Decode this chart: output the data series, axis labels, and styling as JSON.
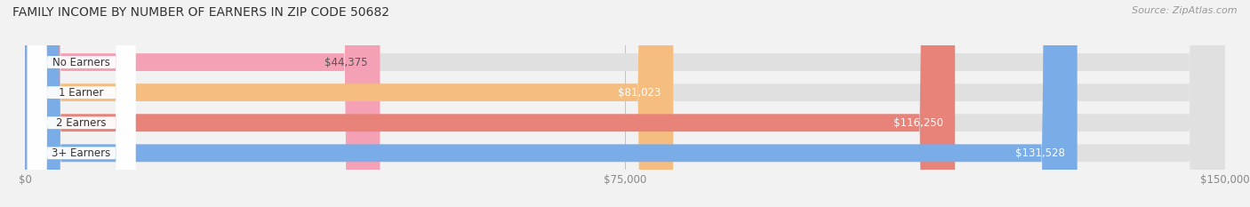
{
  "title": "FAMILY INCOME BY NUMBER OF EARNERS IN ZIP CODE 50682",
  "source": "Source: ZipAtlas.com",
  "categories": [
    "No Earners",
    "1 Earner",
    "2 Earners",
    "3+ Earners"
  ],
  "values": [
    44375,
    81023,
    116250,
    131528
  ],
  "bar_colors": [
    "#f4a0b5",
    "#f5be80",
    "#e8837a",
    "#7aace8"
  ],
  "bar_labels": [
    "$44,375",
    "$81,023",
    "$116,250",
    "$131,528"
  ],
  "x_ticks": [
    0,
    75000,
    150000
  ],
  "x_tick_labels": [
    "$0",
    "$75,000",
    "$150,000"
  ],
  "xlim": [
    0,
    150000
  ],
  "bg_color": "#f2f2f2",
  "track_color": "#e0e0e0",
  "title_fontsize": 10,
  "source_fontsize": 8,
  "label_fontsize": 8.5,
  "tick_fontsize": 8.5,
  "bar_height": 0.58,
  "figsize": [
    14.06,
    2.33
  ],
  "dpi": 100
}
